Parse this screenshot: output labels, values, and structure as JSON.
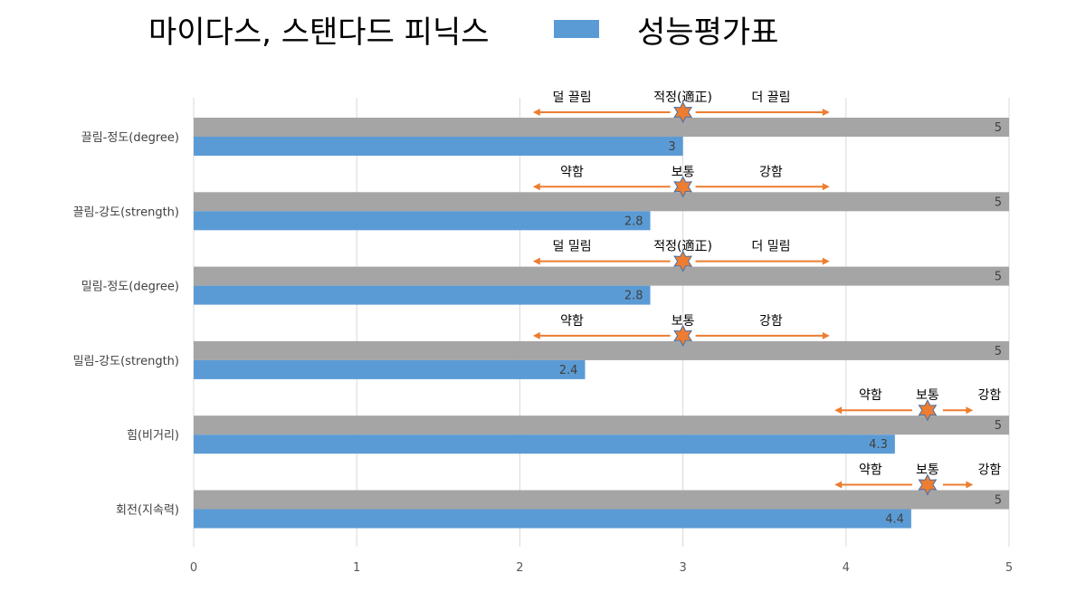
{
  "chart_data": {
    "type": "bar",
    "orientation": "horizontal",
    "title": "마이다스, 스탠다드 피닉스",
    "legend": {
      "label": "성능평가표",
      "position": "top",
      "color": "#5b9bd5"
    },
    "categories": [
      "끌림-정도(degree)",
      "끌림-강도(strength)",
      "밀림-정도(degree)",
      "밀림-강도(strength)",
      "힘(비거리)",
      "회전(지속력)"
    ],
    "series": [
      {
        "values": [
          5,
          5,
          5,
          5,
          5,
          5
        ],
        "color": "#a5a5a5"
      },
      {
        "name": "성능평가표",
        "values": [
          3,
          2.8,
          2.8,
          2.4,
          4.3,
          4.4
        ],
        "color": "#5b9bd5"
      }
    ],
    "xlim": [
      0,
      5
    ],
    "xticks": [
      0,
      1,
      2,
      3,
      4,
      5
    ],
    "grid": true,
    "annotations": [
      {
        "low": "덜 끌림",
        "mid": "적정(適正)",
        "high": "더 끌림",
        "marker": 3,
        "from": 2.08,
        "to": 3.9
      },
      {
        "low": "약함",
        "mid": "보통",
        "high": "강함",
        "marker": 3,
        "from": 2.08,
        "to": 3.9
      },
      {
        "low": "덜 밀림",
        "mid": "적정(適正)",
        "high": "더 밀림",
        "marker": 3,
        "from": 2.08,
        "to": 3.9
      },
      {
        "low": "약함",
        "mid": "보통",
        "high": "강함",
        "marker": 3,
        "from": 2.08,
        "to": 3.9
      },
      {
        "low": "약함",
        "mid": "보통",
        "high": "강함",
        "marker": 4.5,
        "from": 3.93,
        "to": 4.78
      },
      {
        "low": "약함",
        "mid": "보통",
        "high": "강함",
        "marker": 4.5,
        "from": 3.93,
        "to": 4.78
      }
    ],
    "arrow_color": "#ed7d31",
    "marker_color": "#ed7d31"
  }
}
